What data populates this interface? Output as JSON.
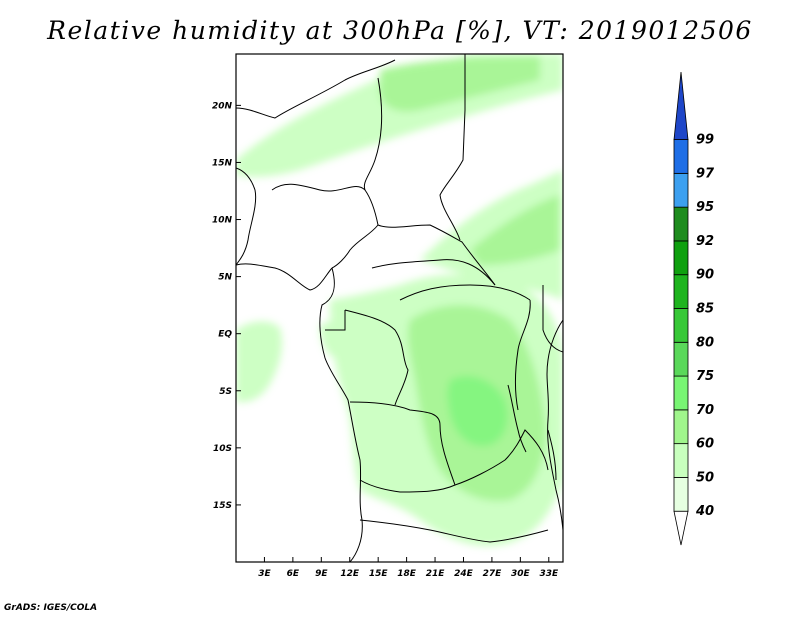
{
  "title": "Relative humidity at 300hPa [%], VT: 2019012506",
  "credit": "GrADS: IGES/COLA",
  "map": {
    "lon_range": [
      0,
      34.5
    ],
    "lat_range": [
      -20,
      24.5
    ],
    "lon_ticks": [
      {
        "value": 3,
        "label": "3E"
      },
      {
        "value": 6,
        "label": "6E"
      },
      {
        "value": 9,
        "label": "9E"
      },
      {
        "value": 12,
        "label": "12E"
      },
      {
        "value": 15,
        "label": "15E"
      },
      {
        "value": 18,
        "label": "18E"
      },
      {
        "value": 21,
        "label": "21E"
      },
      {
        "value": 24,
        "label": "24E"
      },
      {
        "value": 27,
        "label": "27E"
      },
      {
        "value": 30,
        "label": "30E"
      },
      {
        "value": 33,
        "label": "33E"
      }
    ],
    "lat_ticks": [
      {
        "value": 20,
        "label": "20N"
      },
      {
        "value": 15,
        "label": "15N"
      },
      {
        "value": 10,
        "label": "10N"
      },
      {
        "value": 5,
        "label": "5N"
      },
      {
        "value": 0,
        "label": "EQ"
      },
      {
        "value": -5,
        "label": "5S"
      },
      {
        "value": -10,
        "label": "10S"
      },
      {
        "value": -15,
        "label": "15S"
      }
    ]
  },
  "colorbar": {
    "levels": [
      "40",
      "50",
      "60",
      "70",
      "75",
      "80",
      "85",
      "90",
      "92",
      "95",
      "97",
      "99"
    ],
    "colors": [
      "#ffffff",
      "#e6ffe1",
      "#c8ffbe",
      "#a0f58c",
      "#78f573",
      "#5ad85a",
      "#37c837",
      "#1eb41e",
      "#0fa00f",
      "#1e8c1e",
      "#3ca0f0",
      "#1e6ee6",
      "#1e46c8"
    ]
  }
}
